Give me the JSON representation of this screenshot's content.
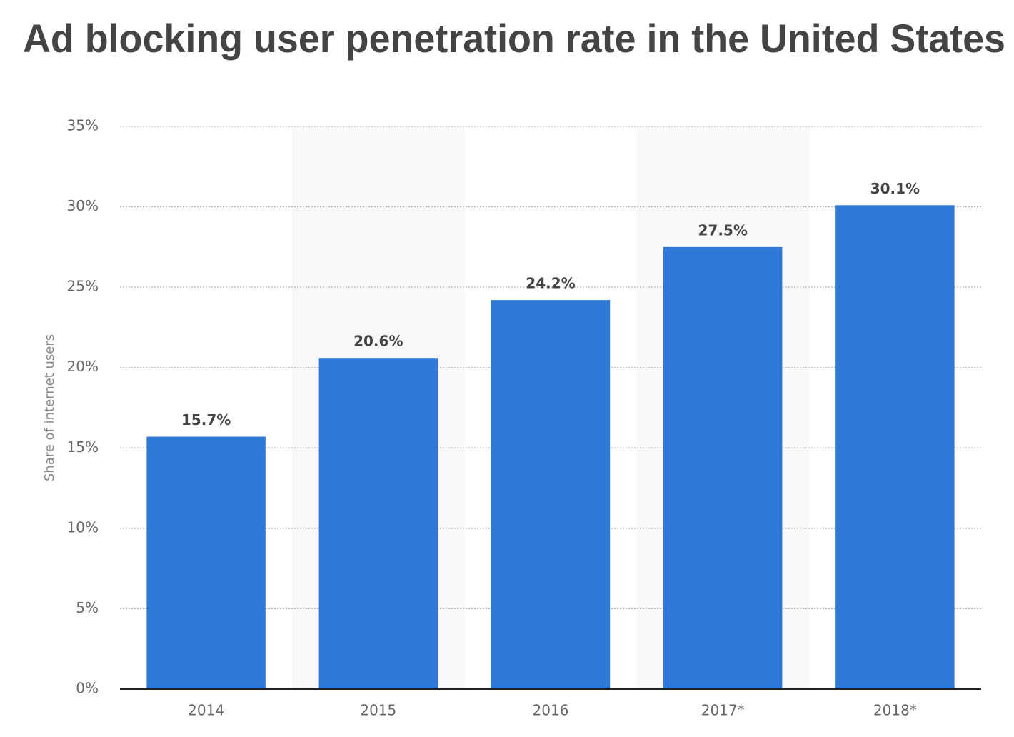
{
  "chart_data": {
    "type": "bar",
    "title": "Ad blocking user penetration rate in the United States",
    "y_label": "Share of internet users",
    "categories": [
      "2014",
      "2015",
      "2016",
      "2017*",
      "2018*"
    ],
    "values": [
      15.7,
      20.6,
      24.2,
      27.5,
      30.1
    ],
    "value_labels": [
      "15.7%",
      "20.6%",
      "24.2%",
      "27.5%",
      "30.1%"
    ],
    "color": "#2e78d8",
    "ylim": [
      0,
      35
    ],
    "yticks": [
      {
        "value": 0,
        "label": "0%"
      },
      {
        "value": 5,
        "label": "5%"
      },
      {
        "value": 10,
        "label": "10%"
      },
      {
        "value": 15,
        "label": "15%"
      },
      {
        "value": 20,
        "label": "20%"
      },
      {
        "value": 25,
        "label": "25%"
      },
      {
        "value": 30,
        "label": "30%"
      },
      {
        "value": 35,
        "label": "35%"
      }
    ],
    "grid": true
  }
}
